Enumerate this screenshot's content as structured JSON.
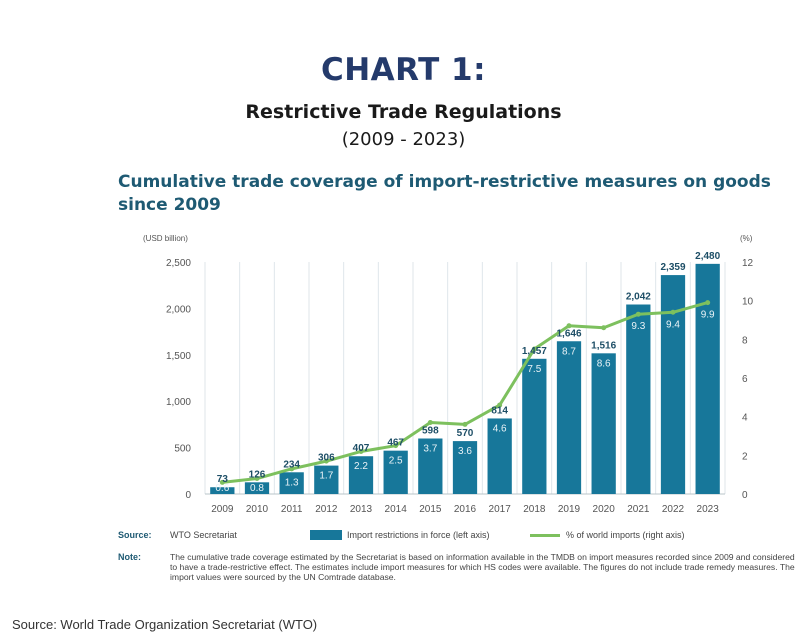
{
  "header": {
    "title": "CHART 1:",
    "subtitle": "Restrictive Trade Regulations",
    "date_range": "(2009 - 2023)"
  },
  "chart_heading": "Cumulative trade coverage of import-restrictive measures on goods since 2009",
  "footer": {
    "source_key": "Source:",
    "source_text": "WTO Secretariat",
    "note_key": "Note:",
    "note_text": "The cumulative trade coverage estimated by the Secretariat is based on information available in the TMDB on import measures recorded since 2009 and considered to have a trade-restrictive effect. The estimates include import measures for which HS codes were available. The figures do not include trade remedy measures. The import values were sourced by the UN Comtrade database.",
    "page_source": "Source: World Trade Organization Secretariat (WTO)"
  },
  "chart_data": {
    "type": "bar",
    "categories": [
      "2009",
      "2010",
      "2011",
      "2012",
      "2013",
      "2014",
      "2015",
      "2016",
      "2017",
      "2018",
      "2019",
      "2020",
      "2021",
      "2022",
      "2023"
    ],
    "series": [
      {
        "name": "Import restrictions in force (left axis)",
        "type": "bar",
        "axis": "left",
        "values": [
          73,
          126,
          234,
          306,
          407,
          467,
          598,
          570,
          814,
          1457,
          1646,
          1516,
          2042,
          2359,
          2480
        ],
        "labels": [
          "73",
          "126",
          "234",
          "306",
          "407",
          "467",
          "598",
          "570",
          "814",
          "1,457",
          "1,646",
          "1,516",
          "2,042",
          "2,359",
          "2,480"
        ],
        "color": "#17779a"
      },
      {
        "name": "% of world imports (right axis)",
        "type": "line",
        "axis": "right",
        "values": [
          0.6,
          0.8,
          1.3,
          1.7,
          2.2,
          2.5,
          3.7,
          3.6,
          4.6,
          7.5,
          8.7,
          8.6,
          9.3,
          9.4,
          9.9
        ],
        "labels": [
          "0.6",
          "0.8",
          "1.3",
          "1.7",
          "2.2",
          "2.5",
          "3.7",
          "3.6",
          "4.6",
          "7.5",
          "8.7",
          "8.6",
          "9.3",
          "9.4",
          "9.9"
        ],
        "color": "#7dc05e"
      }
    ],
    "y_left": {
      "unit": "(USD billion)",
      "range": [
        0,
        2500
      ],
      "ticks": [
        "0",
        "500",
        "1,000",
        "1,500",
        "2,000",
        "2,500"
      ],
      "tick_values": [
        0,
        500,
        1000,
        1500,
        2000,
        2500
      ]
    },
    "y_right": {
      "unit": "(%)",
      "range": [
        0,
        12
      ],
      "ticks": [
        "0",
        "2",
        "4",
        "6",
        "8",
        "10",
        "12"
      ],
      "tick_values": [
        0,
        2,
        4,
        6,
        8,
        10,
        12
      ]
    },
    "grid": "vertical",
    "legend_position": "bottom"
  }
}
